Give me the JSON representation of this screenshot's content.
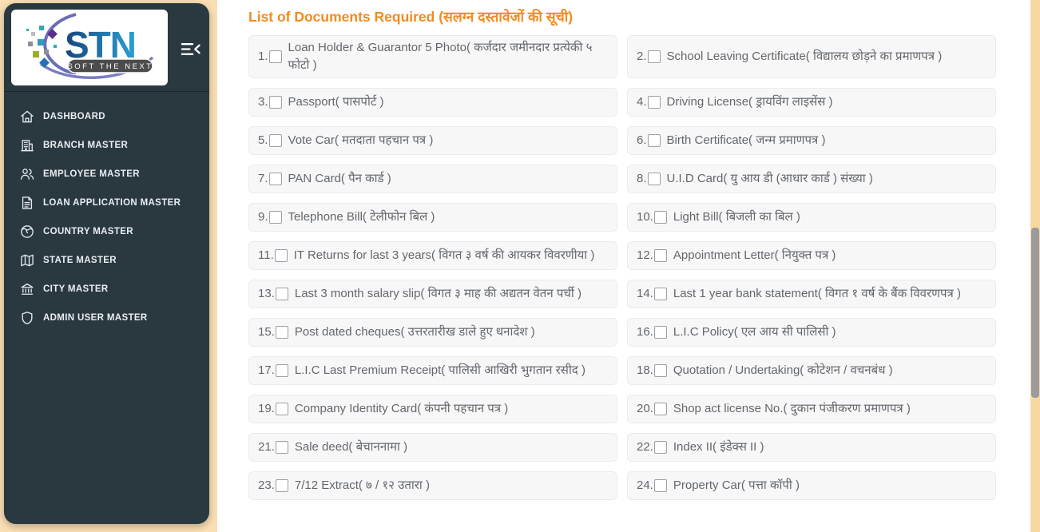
{
  "app": {
    "logo_text": "STN",
    "logo_tagline": "SOFT THE NEXT"
  },
  "sidebar": {
    "items": [
      {
        "label": "DASHBOARD",
        "icon": "home-icon"
      },
      {
        "label": "BRANCH MASTER",
        "icon": "branch-icon"
      },
      {
        "label": "EMPLOYEE MASTER",
        "icon": "employees-icon"
      },
      {
        "label": "LOAN APPLICATION MASTER",
        "icon": "document-icon"
      },
      {
        "label": "COUNTRY MASTER",
        "icon": "globe-icon"
      },
      {
        "label": "STATE MASTER",
        "icon": "map-icon"
      },
      {
        "label": "CITY MASTER",
        "icon": "bank-icon"
      },
      {
        "label": "ADMIN USER MASTER",
        "icon": "shield-icon"
      }
    ]
  },
  "main": {
    "title": "List of Documents Required (सलग्न दस्तावेजों की सूची)",
    "documents": [
      {
        "number": "1.",
        "label": "Loan Holder & Guarantor 5 Photo( कर्जदार जमीनदार प्रत्येकी ५ फोटो )",
        "checked": false
      },
      {
        "number": "2.",
        "label": "School Leaving Certificate( विद्यालय छोड़ने का प्रमाणपत्र )",
        "checked": false
      },
      {
        "number": "3.",
        "label": "Passport( पासपोर्ट )",
        "checked": false
      },
      {
        "number": "4.",
        "label": "Driving License( ड्रायविंग लाइसेंस )",
        "checked": false
      },
      {
        "number": "5.",
        "label": "Vote Car( मतदाता पहचान पत्र )",
        "checked": false
      },
      {
        "number": "6.",
        "label": "Birth Certificate( जन्म प्रमाणपत्र )",
        "checked": false
      },
      {
        "number": "7.",
        "label": "PAN Card( पैन कार्ड )",
        "checked": false
      },
      {
        "number": "8.",
        "label": "U.I.D Card( यु आय डी (आधार कार्ड ) संख्या )",
        "checked": false
      },
      {
        "number": "9.",
        "label": "Telephone Bill( टेलीफोन बिल )",
        "checked": false
      },
      {
        "number": "10.",
        "label": "Light Bill( बिजली का बिल )",
        "checked": false
      },
      {
        "number": "11.",
        "label": "IT Returns for last 3 years( विगत ३ वर्ष की आयकर विवरणीया )",
        "checked": false
      },
      {
        "number": "12.",
        "label": "Appointment Letter( नियुक्त पत्र )",
        "checked": false
      },
      {
        "number": "13.",
        "label": "Last 3 month salary slip( विगत ३ माह की अद्यतन वेतन पर्ची )",
        "checked": false
      },
      {
        "number": "14.",
        "label": "Last 1 year bank statement( विगत १ वर्ष के बैंक विवरणपत्र )",
        "checked": false
      },
      {
        "number": "15.",
        "label": "Post dated cheques( उत्तरतारीख डाले हुए धनादेश )",
        "checked": false
      },
      {
        "number": "16.",
        "label": "L.I.C Policy( एल आय सी पालिसी )",
        "checked": false
      },
      {
        "number": "17.",
        "label": "L.I.C Last Premium Receipt( पालिसी आखिरी भुगतान रसीद )",
        "checked": false
      },
      {
        "number": "18.",
        "label": "Quotation / Undertaking( कोटेशन / वचनबंध )",
        "checked": false
      },
      {
        "number": "19.",
        "label": "Company Identity Card( कंपनी पहचान पत्र )",
        "checked": false
      },
      {
        "number": "20.",
        "label": "Shop act license No.( दुकान पंजीकरण प्रमाणपत्र )",
        "checked": false
      },
      {
        "number": "21.",
        "label": "Sale deed( बेचाननामा )",
        "checked": false
      },
      {
        "number": "22.",
        "label": "Index II( इंडेक्स II )",
        "checked": false
      },
      {
        "number": "23.",
        "label": "7/12 Extract( ७ / १२ उतारा )",
        "checked": false
      },
      {
        "number": "24.",
        "label": "Property Car( पत्ता कॉपी )",
        "checked": false
      }
    ]
  },
  "colors": {
    "page_background": "#fbdfb4",
    "sidebar_background": "#2a3940",
    "title_orange": "#f28b20",
    "item_background": "#f7f7f7",
    "item_text": "#63676d",
    "scroll_thumb": "#9b9b9b"
  }
}
